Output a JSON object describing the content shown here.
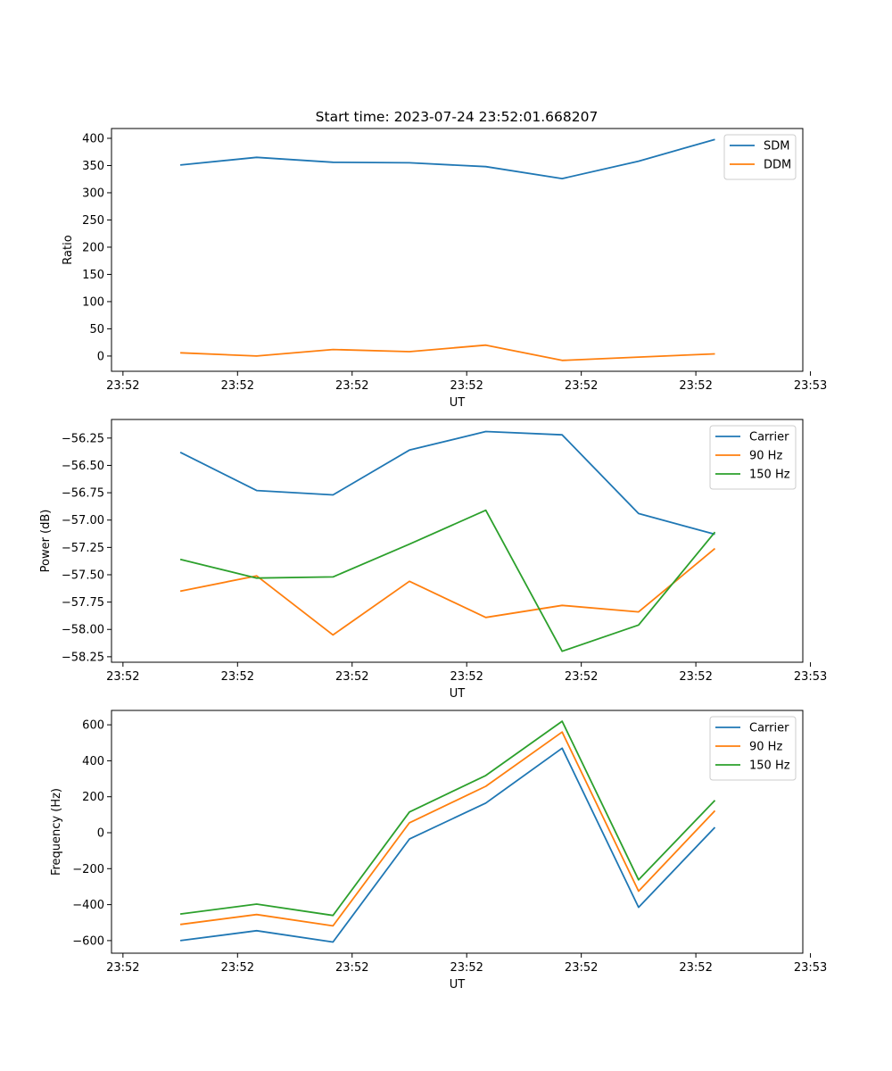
{
  "figure": {
    "title": "Start time: 2023-07-24 23:52:01.668207"
  },
  "chart_data": [
    {
      "type": "line",
      "xlabel": "UT",
      "ylabel": "Ratio",
      "x_tick_labels": [
        "23:52",
        "23:52",
        "23:52",
        "23:52",
        "23:52",
        "23:52",
        "23:53"
      ],
      "xlim": [
        -0.15,
        8.9
      ],
      "x": [
        0.75,
        1.75,
        2.75,
        3.75,
        4.75,
        5.75,
        6.75,
        7.75
      ],
      "ylim": [
        -28,
        418
      ],
      "y_ticks": [
        0,
        50,
        100,
        150,
        200,
        250,
        300,
        350,
        400
      ],
      "y_tick_labels": [
        "0",
        "50",
        "100",
        "150",
        "200",
        "250",
        "300",
        "350",
        "400"
      ],
      "legend_position": "top-right",
      "series": [
        {
          "name": "SDM",
          "color": "#1f77b4",
          "values": [
            351,
            365,
            356,
            355,
            348,
            326,
            358,
            398
          ]
        },
        {
          "name": "DDM",
          "color": "#ff7f0e",
          "values": [
            6,
            0,
            12,
            8,
            20,
            -8,
            -2,
            4
          ]
        }
      ]
    },
    {
      "type": "line",
      "xlabel": "UT",
      "ylabel": "Power (dB)",
      "x_tick_labels": [
        "23:52",
        "23:52",
        "23:52",
        "23:52",
        "23:52",
        "23:52",
        "23:53"
      ],
      "xlim": [
        -0.15,
        8.9
      ],
      "x": [
        0.75,
        1.75,
        2.75,
        3.75,
        4.75,
        5.75,
        6.75,
        7.75
      ],
      "ylim": [
        -58.3,
        -56.08
      ],
      "y_ticks": [
        -58.25,
        -58.0,
        -57.75,
        -57.5,
        -57.25,
        -57.0,
        -56.75,
        -56.5,
        -56.25
      ],
      "y_tick_labels": [
        "−58.25",
        "−58.00",
        "−57.75",
        "−57.50",
        "−57.25",
        "−57.00",
        "−56.75",
        "−56.50",
        "−56.25"
      ],
      "legend_position": "top-right",
      "series": [
        {
          "name": "Carrier",
          "color": "#1f77b4",
          "values": [
            -56.38,
            -56.73,
            -56.77,
            -56.36,
            -56.19,
            -56.22,
            -56.94,
            -57.13
          ]
        },
        {
          "name": "90 Hz",
          "color": "#ff7f0e",
          "values": [
            -57.65,
            -57.51,
            -58.05,
            -57.56,
            -57.89,
            -57.78,
            -57.84,
            -57.26
          ]
        },
        {
          "name": "150 Hz",
          "color": "#2ca02c",
          "values": [
            -57.36,
            -57.53,
            -57.52,
            -57.22,
            -56.91,
            -58.2,
            -57.96,
            -57.11
          ]
        }
      ]
    },
    {
      "type": "line",
      "xlabel": "UT",
      "ylabel": "Frequency (Hz)",
      "x_tick_labels": [
        "23:52",
        "23:52",
        "23:52",
        "23:52",
        "23:52",
        "23:52",
        "23:53"
      ],
      "xlim": [
        -0.15,
        8.9
      ],
      "x": [
        0.75,
        1.75,
        2.75,
        3.75,
        4.75,
        5.75,
        6.75,
        7.75
      ],
      "ylim": [
        -670,
        680
      ],
      "y_ticks": [
        -600,
        -400,
        -200,
        0,
        200,
        400,
        600
      ],
      "y_tick_labels": [
        "−600",
        "−400",
        "−200",
        "0",
        "200",
        "400",
        "600"
      ],
      "legend_position": "top-right",
      "series": [
        {
          "name": "Carrier",
          "color": "#1f77b4",
          "values": [
            -600,
            -545,
            -608,
            -35,
            165,
            470,
            -415,
            30
          ]
        },
        {
          "name": "90 Hz",
          "color": "#ff7f0e",
          "values": [
            -510,
            -455,
            -518,
            55,
            258,
            560,
            -325,
            122
          ]
        },
        {
          "name": "150 Hz",
          "color": "#2ca02c",
          "values": [
            -452,
            -397,
            -460,
            115,
            318,
            620,
            -262,
            180
          ]
        }
      ]
    }
  ]
}
